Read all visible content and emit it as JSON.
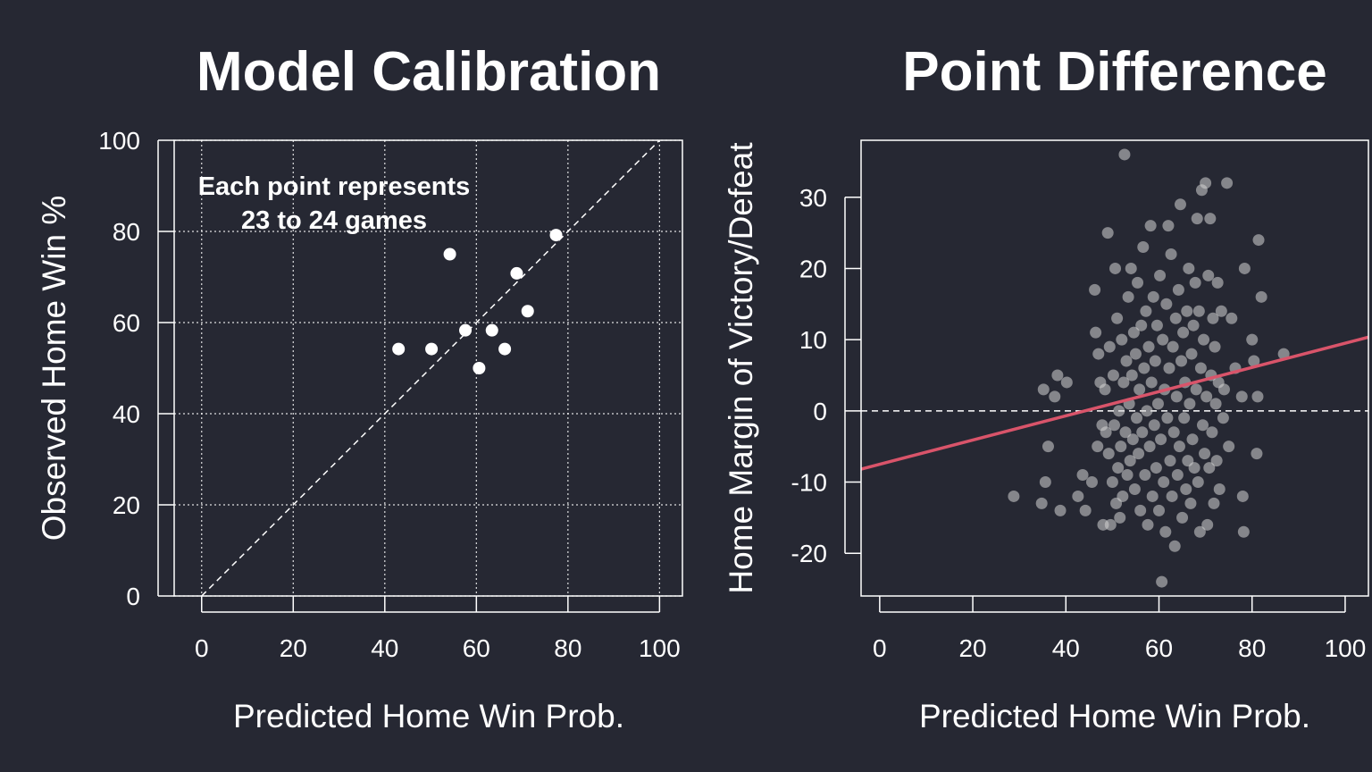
{
  "chart_data": [
    {
      "type": "scatter",
      "title": "Model Calibration",
      "xlabel": "Predicted Home Win Prob.",
      "ylabel": "Observed Home Win %",
      "xlim": [
        -6,
        105
      ],
      "ylim": [
        0,
        100
      ],
      "xticks": [
        0,
        20,
        40,
        60,
        80,
        100
      ],
      "yticks": [
        0,
        20,
        40,
        60,
        80,
        100
      ],
      "grid": true,
      "reference_line": "y = x",
      "annotation": [
        "Each point represents",
        "23 to 24 games"
      ],
      "point_color": "#ffffff",
      "points": [
        {
          "x": 43,
          "y": 54.2
        },
        {
          "x": 50.2,
          "y": 54.2
        },
        {
          "x": 54.2,
          "y": 75
        },
        {
          "x": 57.6,
          "y": 58.3
        },
        {
          "x": 60.6,
          "y": 50
        },
        {
          "x": 63.4,
          "y": 58.3
        },
        {
          "x": 66.2,
          "y": 54.2
        },
        {
          "x": 68.8,
          "y": 70.8
        },
        {
          "x": 71.2,
          "y": 62.5
        },
        {
          "x": 77.4,
          "y": 79.2
        }
      ]
    },
    {
      "type": "scatter",
      "title": "Point Difference",
      "xlabel": "Predicted Home Win Prob.",
      "ylabel": "Home Margin of Victory/Defeat",
      "xlim": [
        -4,
        105
      ],
      "ylim": [
        -26,
        38
      ],
      "xticks": [
        0,
        20,
        40,
        60,
        80,
        100
      ],
      "yticks": [
        -20,
        -10,
        0,
        10,
        20,
        30
      ],
      "grid": false,
      "zero_line": true,
      "point_color": "#d3d3d3",
      "fit_line": {
        "intercept": -7.5,
        "slope": 0.17,
        "color": "#d9546a"
      },
      "points": [
        {
          "x": 28.8,
          "y": -12
        },
        {
          "x": 34.8,
          "y": -13
        },
        {
          "x": 35.2,
          "y": 3
        },
        {
          "x": 35.6,
          "y": -10
        },
        {
          "x": 36.2,
          "y": -5
        },
        {
          "x": 37.6,
          "y": 2
        },
        {
          "x": 38.2,
          "y": 5
        },
        {
          "x": 38.8,
          "y": -14
        },
        {
          "x": 40.2,
          "y": 4
        },
        {
          "x": 42.6,
          "y": -12
        },
        {
          "x": 43.6,
          "y": -9
        },
        {
          "x": 44.2,
          "y": -14
        },
        {
          "x": 45.6,
          "y": -10
        },
        {
          "x": 46.2,
          "y": 17
        },
        {
          "x": 46.4,
          "y": 11
        },
        {
          "x": 46.8,
          "y": -5
        },
        {
          "x": 47,
          "y": 8
        },
        {
          "x": 47.4,
          "y": 4
        },
        {
          "x": 47.8,
          "y": -2
        },
        {
          "x": 48,
          "y": -16
        },
        {
          "x": 48.4,
          "y": 3
        },
        {
          "x": 48.6,
          "y": -3
        },
        {
          "x": 49,
          "y": 25
        },
        {
          "x": 49.2,
          "y": -6
        },
        {
          "x": 49.4,
          "y": 9
        },
        {
          "x": 49.6,
          "y": -16
        },
        {
          "x": 50,
          "y": -10
        },
        {
          "x": 50.2,
          "y": 5
        },
        {
          "x": 50.4,
          "y": -2
        },
        {
          "x": 50.6,
          "y": 20
        },
        {
          "x": 50.8,
          "y": -13
        },
        {
          "x": 51,
          "y": 13
        },
        {
          "x": 51.2,
          "y": -8
        },
        {
          "x": 51.4,
          "y": 0
        },
        {
          "x": 51.6,
          "y": -15
        },
        {
          "x": 51.8,
          "y": -5
        },
        {
          "x": 52,
          "y": 10
        },
        {
          "x": 52.2,
          "y": -12
        },
        {
          "x": 52.4,
          "y": 4
        },
        {
          "x": 52.6,
          "y": 36
        },
        {
          "x": 52.8,
          "y": -3
        },
        {
          "x": 53,
          "y": 7
        },
        {
          "x": 53.2,
          "y": -9
        },
        {
          "x": 53.4,
          "y": 16
        },
        {
          "x": 53.6,
          "y": 1
        },
        {
          "x": 53.8,
          "y": -7
        },
        {
          "x": 54,
          "y": 20
        },
        {
          "x": 54.2,
          "y": 5
        },
        {
          "x": 54.4,
          "y": -4
        },
        {
          "x": 54.6,
          "y": 11
        },
        {
          "x": 54.8,
          "y": -11
        },
        {
          "x": 55,
          "y": 8
        },
        {
          "x": 55.2,
          "y": -1
        },
        {
          "x": 55.4,
          "y": 18
        },
        {
          "x": 55.6,
          "y": -6
        },
        {
          "x": 55.8,
          "y": 3
        },
        {
          "x": 56,
          "y": -14
        },
        {
          "x": 56.2,
          "y": 12
        },
        {
          "x": 56.4,
          "y": -3
        },
        {
          "x": 56.6,
          "y": 23
        },
        {
          "x": 56.8,
          "y": 6
        },
        {
          "x": 57,
          "y": -9
        },
        {
          "x": 57.2,
          "y": 14
        },
        {
          "x": 57.4,
          "y": 0
        },
        {
          "x": 57.6,
          "y": -16
        },
        {
          "x": 57.8,
          "y": 9
        },
        {
          "x": 58,
          "y": -5
        },
        {
          "x": 58.2,
          "y": 26
        },
        {
          "x": 58.4,
          "y": 4
        },
        {
          "x": 58.6,
          "y": -12
        },
        {
          "x": 58.8,
          "y": 16
        },
        {
          "x": 59,
          "y": -2
        },
        {
          "x": 59.2,
          "y": 7
        },
        {
          "x": 59.4,
          "y": -8
        },
        {
          "x": 59.6,
          "y": 12
        },
        {
          "x": 59.8,
          "y": 1
        },
        {
          "x": 60,
          "y": -14
        },
        {
          "x": 60.2,
          "y": 19
        },
        {
          "x": 60.4,
          "y": -4
        },
        {
          "x": 60.6,
          "y": -24
        },
        {
          "x": 60.8,
          "y": 10
        },
        {
          "x": 61,
          "y": -10
        },
        {
          "x": 61.2,
          "y": 3
        },
        {
          "x": 61.4,
          "y": -17
        },
        {
          "x": 61.6,
          "y": 15
        },
        {
          "x": 61.8,
          "y": -1
        },
        {
          "x": 62,
          "y": 26
        },
        {
          "x": 62.2,
          "y": 6
        },
        {
          "x": 62.4,
          "y": -7
        },
        {
          "x": 62.6,
          "y": 22
        },
        {
          "x": 62.8,
          "y": -12
        },
        {
          "x": 63,
          "y": 9
        },
        {
          "x": 63.2,
          "y": -3
        },
        {
          "x": 63.4,
          "y": -19
        },
        {
          "x": 63.6,
          "y": 13
        },
        {
          "x": 63.8,
          "y": 2
        },
        {
          "x": 64,
          "y": -9
        },
        {
          "x": 64.2,
          "y": 17
        },
        {
          "x": 64.4,
          "y": -5
        },
        {
          "x": 64.6,
          "y": 29
        },
        {
          "x": 64.8,
          "y": 7
        },
        {
          "x": 65,
          "y": -15
        },
        {
          "x": 65.2,
          "y": 11
        },
        {
          "x": 65.4,
          "y": -1
        },
        {
          "x": 65.6,
          "y": 4
        },
        {
          "x": 65.8,
          "y": -11
        },
        {
          "x": 66,
          "y": 14
        },
        {
          "x": 66.2,
          "y": -7
        },
        {
          "x": 66.4,
          "y": 20
        },
        {
          "x": 66.6,
          "y": 1
        },
        {
          "x": 66.8,
          "y": -13
        },
        {
          "x": 67,
          "y": 8
        },
        {
          "x": 67.2,
          "y": -4
        },
        {
          "x": 67.4,
          "y": 12
        },
        {
          "x": 67.6,
          "y": -8
        },
        {
          "x": 67.8,
          "y": 18
        },
        {
          "x": 68,
          "y": 3
        },
        {
          "x": 68.2,
          "y": 27
        },
        {
          "x": 68.4,
          "y": -10
        },
        {
          "x": 68.6,
          "y": 14
        },
        {
          "x": 68.8,
          "y": -17
        },
        {
          "x": 69,
          "y": 6
        },
        {
          "x": 69.2,
          "y": 31
        },
        {
          "x": 69.4,
          "y": -2
        },
        {
          "x": 69.6,
          "y": 10
        },
        {
          "x": 69.8,
          "y": -6
        },
        {
          "x": 70,
          "y": 32
        },
        {
          "x": 70.2,
          "y": 2
        },
        {
          "x": 70.4,
          "y": -16
        },
        {
          "x": 70.6,
          "y": 19
        },
        {
          "x": 70.8,
          "y": -8
        },
        {
          "x": 71,
          "y": 27
        },
        {
          "x": 71.2,
          "y": 5
        },
        {
          "x": 71.4,
          "y": -3
        },
        {
          "x": 71.6,
          "y": 13
        },
        {
          "x": 71.8,
          "y": -13
        },
        {
          "x": 72,
          "y": 9
        },
        {
          "x": 72.2,
          "y": 1
        },
        {
          "x": 72.4,
          "y": -7
        },
        {
          "x": 72.6,
          "y": 18
        },
        {
          "x": 72.8,
          "y": 4
        },
        {
          "x": 73,
          "y": -11
        },
        {
          "x": 73.4,
          "y": 14
        },
        {
          "x": 73.8,
          "y": -1
        },
        {
          "x": 74,
          "y": 3
        },
        {
          "x": 74.6,
          "y": 32
        },
        {
          "x": 75,
          "y": -5
        },
        {
          "x": 75.6,
          "y": 13
        },
        {
          "x": 76.4,
          "y": 6
        },
        {
          "x": 77.8,
          "y": 2
        },
        {
          "x": 78,
          "y": -12
        },
        {
          "x": 78.2,
          "y": -17
        },
        {
          "x": 78.4,
          "y": 20
        },
        {
          "x": 80,
          "y": 10
        },
        {
          "x": 80.4,
          "y": 7
        },
        {
          "x": 81,
          "y": -6
        },
        {
          "x": 81.2,
          "y": 2
        },
        {
          "x": 81.4,
          "y": 24
        },
        {
          "x": 82,
          "y": 16
        },
        {
          "x": 86.8,
          "y": 8
        }
      ]
    }
  ]
}
